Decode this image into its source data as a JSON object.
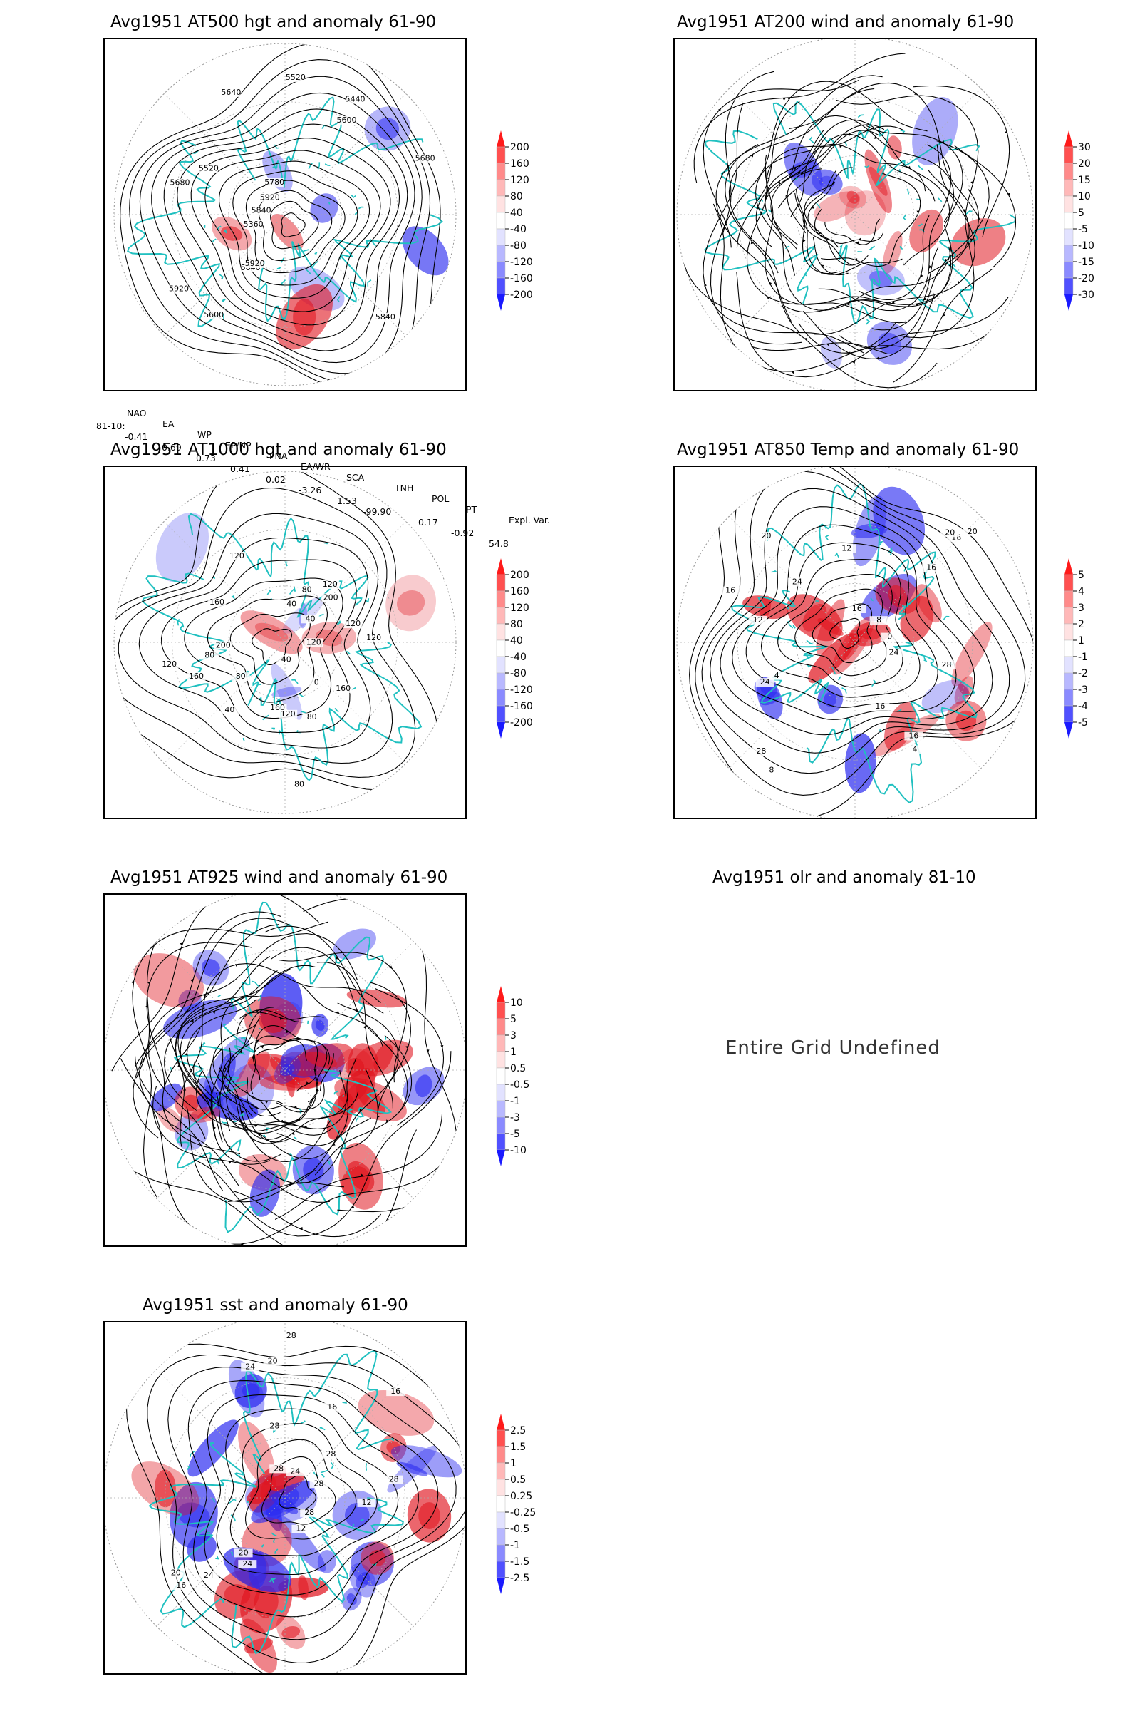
{
  "panels": [
    {
      "id": "p500",
      "title": "Avg1951 AT500 hgt and anomaly 61-90",
      "colorbar": [
        "200",
        "160",
        "120",
        "80",
        "40",
        "-40",
        "-80",
        "-120",
        "-160",
        "-200"
      ],
      "contour_labels": [
        "5840",
        "5600",
        "5520",
        "5680",
        "5360",
        "5920",
        "5440",
        "5780",
        "5520",
        "5600",
        "5680",
        "5840",
        "5920",
        "5840",
        "5640",
        "5920"
      ]
    },
    {
      "id": "p200",
      "title": "Avg1951 AT200 wind and anomaly 61-90",
      "colorbar": [
        "30",
        "20",
        "15",
        "10",
        "5",
        "-5",
        "-10",
        "-15",
        "-20",
        "-30"
      ],
      "contour_labels": []
    },
    {
      "id": "p1000",
      "title": "Avg1951 AT1000 hgt and anomaly 61-90",
      "colorbar": [
        "200",
        "160",
        "120",
        "80",
        "40",
        "-40",
        "-80",
        "-120",
        "-160",
        "-200"
      ],
      "contour_labels": [
        "120",
        "160",
        "160",
        "200",
        "80",
        "120",
        "80",
        "40",
        "0",
        "40",
        "160",
        "200",
        "160",
        "120",
        "80",
        "40",
        "120",
        "80",
        "120",
        "120",
        "40",
        "80",
        "120"
      ]
    },
    {
      "id": "p850",
      "title": "Avg1951 AT850 Temp and anomaly 61-90",
      "colorbar": [
        "5",
        "4",
        "3",
        "2",
        "1",
        "-1",
        "-2",
        "-3",
        "-4",
        "-5"
      ],
      "contour_labels": [
        "16",
        "12",
        "16",
        "24",
        "20",
        "8",
        "4",
        "0",
        "8",
        "28",
        "24",
        "16",
        "4",
        "12",
        "20",
        "16",
        "24",
        "20",
        "16",
        "28",
        "16"
      ]
    },
    {
      "id": "p925",
      "title": "Avg1951 AT925 wind and anomaly 61-90",
      "colorbar": [
        "10",
        "5",
        "3",
        "1",
        "0.5",
        "-0.5",
        "-1",
        "-3",
        "-5",
        "-10"
      ],
      "contour_labels": []
    },
    {
      "id": "polr",
      "title": "Avg1951 olr and anomaly 81-10",
      "message": "Entire Grid Undefined"
    },
    {
      "id": "psst",
      "title": "Avg1951 sst and anomaly 61-90",
      "colorbar": [
        "2.5",
        "1.5",
        "1",
        "0.5",
        "0.25",
        "-0.25",
        "-0.5",
        "-1",
        "-1.5",
        "-2.5"
      ],
      "contour_labels": [
        "28",
        "24",
        "20",
        "16",
        "24",
        "20",
        "16",
        "12",
        "28",
        "24",
        "28",
        "24",
        "20",
        "16",
        "12",
        "28",
        "28",
        "28",
        "28"
      ]
    }
  ],
  "indices": {
    "headers": [
      "NAO",
      "EA",
      "WP",
      "EP/NP",
      "PNA",
      "EA/WR",
      "SCA",
      "TNH",
      "POL",
      "PT",
      "Expl. Var."
    ],
    "row_label": "81-10:",
    "values": [
      "-0.41",
      "0.69",
      "0.73",
      "0.41",
      "0.02",
      "-3.26",
      "1.53",
      "-99.90",
      "0.17",
      "-0.92",
      "54.8"
    ]
  },
  "colors": {
    "coast": "#20c0c0",
    "pos": "#e0141e",
    "neg": "#2a2af0",
    "contour": "#000000"
  }
}
